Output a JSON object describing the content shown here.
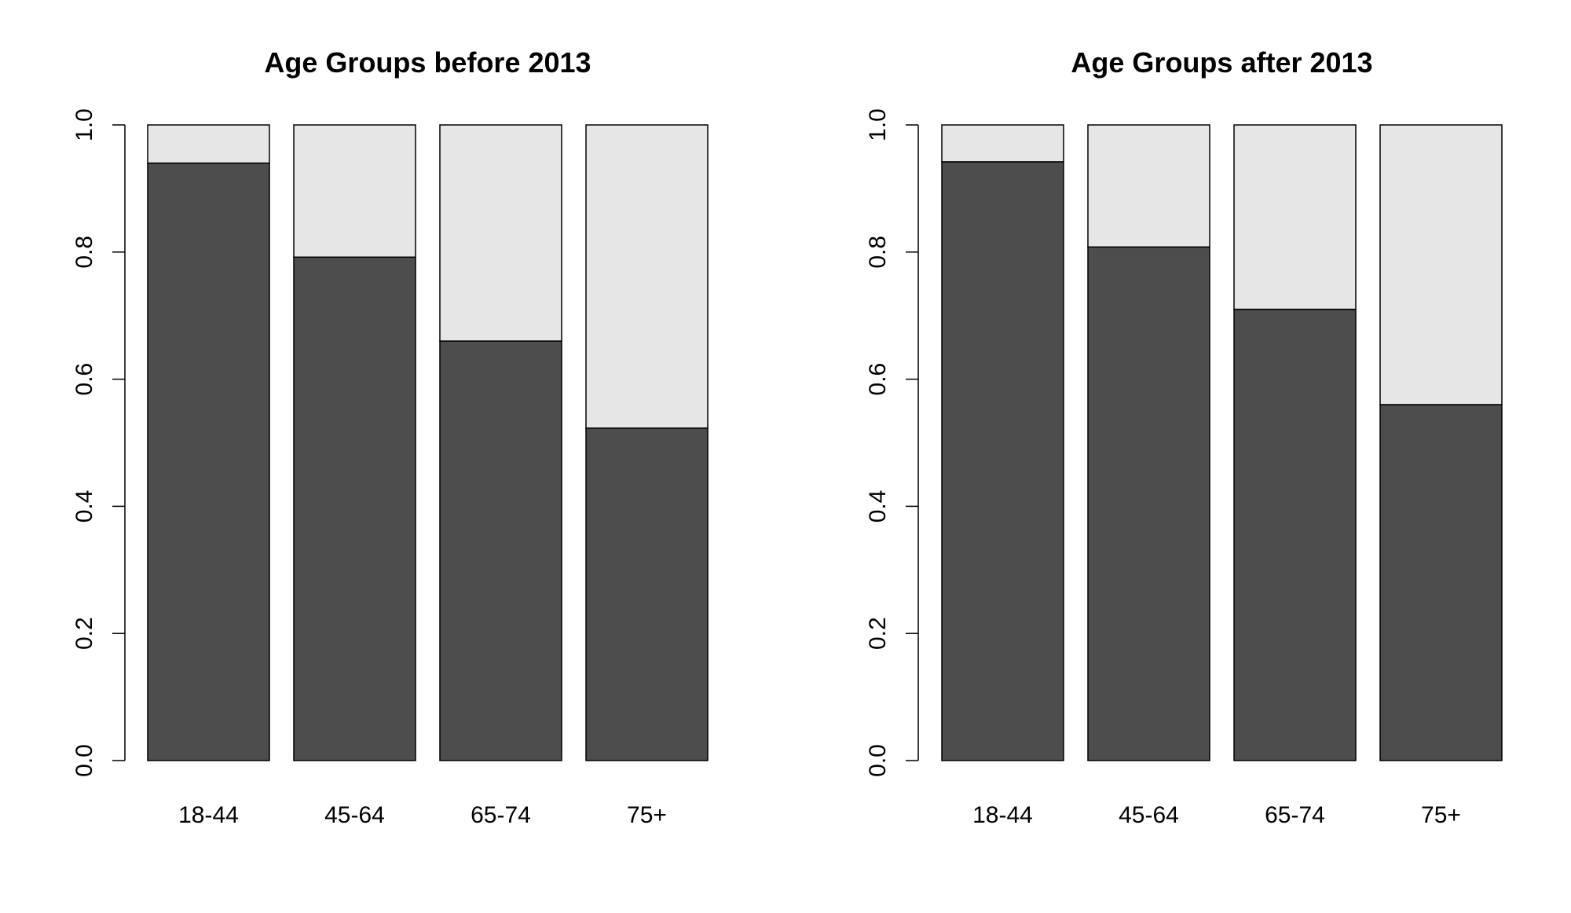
{
  "chart_data": [
    {
      "type": "bar",
      "stacked": true,
      "title": "Age Groups before 2013",
      "categories": [
        "18-44",
        "45-64",
        "65-74",
        "75+"
      ],
      "series": [
        {
          "values": [
            0.94,
            0.792,
            0.66,
            0.523
          ],
          "color": "#4d4d4d"
        },
        {
          "values": [
            0.06,
            0.208,
            0.34,
            0.477
          ],
          "color": "#e6e6e6"
        }
      ],
      "ylim": [
        0,
        1
      ],
      "yticks": [
        "0.0",
        "0.2",
        "0.4",
        "0.6",
        "0.8",
        "1.0"
      ],
      "grid": false,
      "xlabel": "",
      "ylabel": ""
    },
    {
      "type": "bar",
      "stacked": true,
      "title": "Age Groups after 2013",
      "categories": [
        "18-44",
        "45-64",
        "65-74",
        "75+"
      ],
      "series": [
        {
          "values": [
            0.942,
            0.808,
            0.71,
            0.56
          ],
          "color": "#4d4d4d"
        },
        {
          "values": [
            0.058,
            0.192,
            0.29,
            0.44
          ],
          "color": "#e6e6e6"
        }
      ],
      "ylim": [
        0,
        1
      ],
      "yticks": [
        "0.0",
        "0.2",
        "0.4",
        "0.6",
        "0.8",
        "1.0"
      ],
      "grid": false,
      "xlabel": "",
      "ylabel": ""
    }
  ]
}
